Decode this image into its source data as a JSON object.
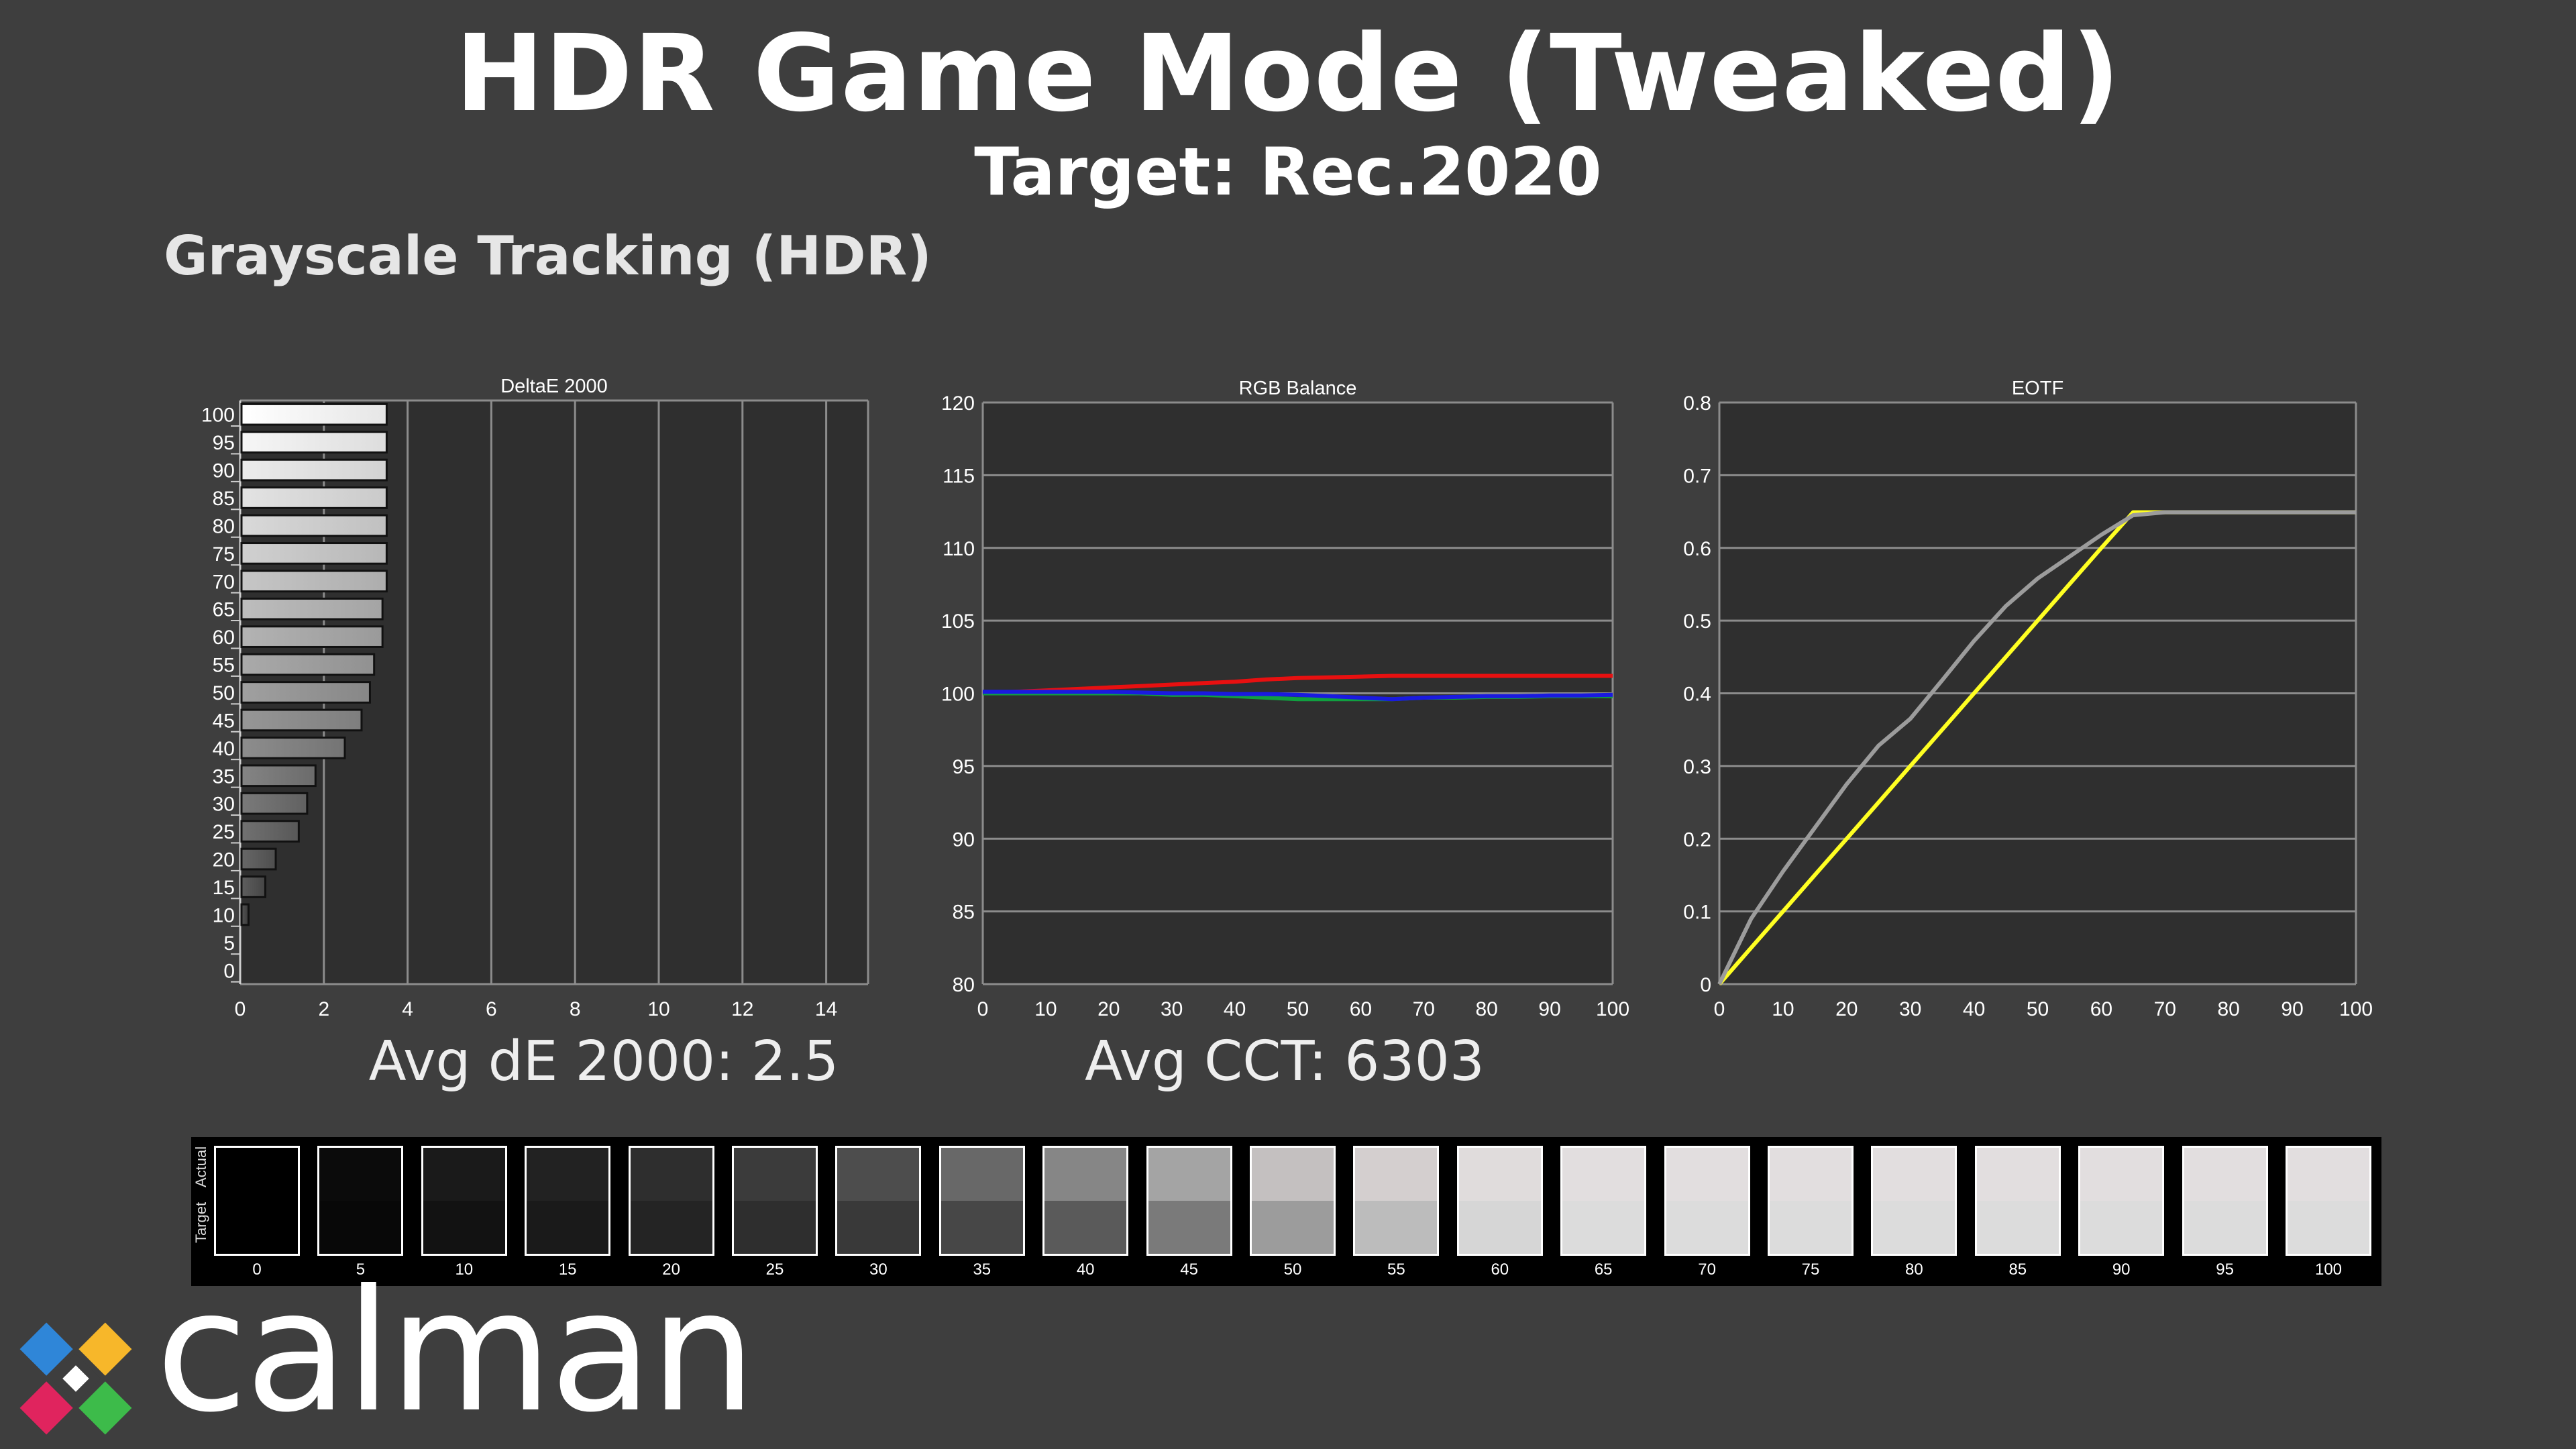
{
  "header": {
    "title": "HDR Game Mode (Tweaked)",
    "subtitle": "Target: Rec.2020",
    "section": "Grayscale Tracking (HDR)"
  },
  "summary": {
    "avg_de": "Avg dE 2000: 2.5",
    "avg_cct": "Avg CCT: 6303"
  },
  "colors": {
    "background": "#3e3e3e",
    "plot_bg": "#2f2f2f",
    "grid": "#8c8c8c",
    "red": "#e81010",
    "green": "#10a040",
    "blue": "#1a1ae0",
    "eotf_target": "#ffff22",
    "eotf_actual": "#9c9c9c"
  },
  "swatch_panel": {
    "actual_label": "Actual",
    "target_label": "Target",
    "levels": [
      "0",
      "5",
      "10",
      "15",
      "20",
      "25",
      "30",
      "35",
      "40",
      "45",
      "50",
      "55",
      "60",
      "65",
      "70",
      "75",
      "80",
      "85",
      "90",
      "95",
      "100"
    ],
    "actual_colors": [
      "#000000",
      "#0b0b0b",
      "#1a1a1a",
      "#222222",
      "#2e2e2e",
      "#3b3b3b",
      "#4d4d4d",
      "#686868",
      "#868686",
      "#a4a4a4",
      "#c4c0c0",
      "#d4cfcf",
      "#e0dcdc",
      "#e2dedf",
      "#e2dedf",
      "#e2dedf",
      "#e2dedf",
      "#e2dedf",
      "#e2dedf",
      "#e2dedf",
      "#e2dedf"
    ],
    "target_colors": [
      "#000000",
      "#080808",
      "#121212",
      "#1a1a1a",
      "#242424",
      "#2e2e2e",
      "#393939",
      "#474747",
      "#5a5a5a",
      "#7a7a7a",
      "#9c9c9c",
      "#bcbcbc",
      "#d6d6d6",
      "#dcdcdc",
      "#dcdcdc",
      "#dcdcdc",
      "#dcdcdc",
      "#dcdcdc",
      "#dcdcdc",
      "#dcdcdc",
      "#dcdcdc"
    ]
  },
  "chart_data": [
    {
      "type": "bar",
      "orientation": "horizontal",
      "title": "DeltaE 2000",
      "categories": [
        "0",
        "5",
        "10",
        "15",
        "20",
        "25",
        "30",
        "35",
        "40",
        "45",
        "50",
        "55",
        "60",
        "65",
        "70",
        "75",
        "80",
        "85",
        "90",
        "95",
        "100"
      ],
      "values": [
        0,
        0,
        0.2,
        0.6,
        0.85,
        1.4,
        1.6,
        1.8,
        2.5,
        2.9,
        3.1,
        3.2,
        3.4,
        3.4,
        3.5,
        3.5,
        3.5,
        3.5,
        3.5,
        3.5,
        3.5
      ],
      "xlim": [
        0,
        15
      ],
      "xticks": [
        "0",
        "2",
        "4",
        "6",
        "8",
        "10",
        "12",
        "14"
      ],
      "grid": true
    },
    {
      "type": "line",
      "title": "RGB Balance",
      "x": [
        0,
        5,
        10,
        15,
        20,
        25,
        30,
        35,
        40,
        45,
        50,
        55,
        60,
        65,
        70,
        75,
        80,
        85,
        90,
        95,
        100
      ],
      "series": [
        {
          "color": "#e81010",
          "values": [
            100,
            100.1,
            100.2,
            100.3,
            100.4,
            100.5,
            100.6,
            100.7,
            100.8,
            100.95,
            101.05,
            101.1,
            101.15,
            101.2,
            101.2,
            101.2,
            101.2,
            101.2,
            101.2,
            101.2,
            101.2
          ]
        },
        {
          "color": "#10a040",
          "values": [
            100,
            100,
            100,
            100,
            100,
            100,
            99.9,
            99.9,
            99.8,
            99.7,
            99.6,
            99.6,
            99.6,
            99.6,
            99.7,
            99.7,
            99.75,
            99.75,
            99.8,
            99.8,
            99.8
          ]
        },
        {
          "color": "#1a1ae0",
          "values": [
            100.1,
            100.1,
            100.1,
            100.1,
            100.1,
            100.05,
            100,
            100,
            99.95,
            99.95,
            99.9,
            99.8,
            99.7,
            99.6,
            99.7,
            99.75,
            99.8,
            99.8,
            99.85,
            99.85,
            99.9
          ]
        }
      ],
      "xlim": [
        0,
        100
      ],
      "ylim": [
        80,
        120
      ],
      "xticks": [
        "0",
        "10",
        "20",
        "30",
        "40",
        "50",
        "60",
        "70",
        "80",
        "90",
        "100"
      ],
      "yticks": [
        "80",
        "85",
        "90",
        "95",
        "100",
        "105",
        "110",
        "115",
        "120"
      ],
      "grid": true
    },
    {
      "type": "line",
      "title": "EOTF",
      "x": [
        0,
        5,
        10,
        15,
        20,
        25,
        30,
        35,
        40,
        45,
        50,
        55,
        60,
        65,
        70,
        75,
        80,
        85,
        90,
        95,
        100
      ],
      "series": [
        {
          "color": "#ffff22",
          "values": [
            0,
            0.05,
            0.1,
            0.15,
            0.2,
            0.25,
            0.3,
            0.35,
            0.4,
            0.45,
            0.5,
            0.55,
            0.6,
            0.649,
            0.649,
            0.649,
            0.649,
            0.649,
            0.649,
            0.649,
            0.649
          ]
        },
        {
          "color": "#9c9c9c",
          "values": [
            0,
            0.09,
            0.155,
            0.215,
            0.275,
            0.328,
            0.365,
            0.418,
            0.472,
            0.52,
            0.558,
            0.588,
            0.618,
            0.645,
            0.649,
            0.649,
            0.649,
            0.649,
            0.649,
            0.649,
            0.649
          ]
        }
      ],
      "xlim": [
        0,
        100
      ],
      "ylim": [
        0,
        0.8
      ],
      "xticks": [
        "0",
        "10",
        "20",
        "30",
        "40",
        "50",
        "60",
        "70",
        "80",
        "90",
        "100"
      ],
      "yticks": [
        "0",
        "0.1",
        "0.2",
        "0.3",
        "0.4",
        "0.5",
        "0.6",
        "0.7",
        "0.8"
      ],
      "grid": true
    }
  ],
  "logo": {
    "text": "calman"
  }
}
